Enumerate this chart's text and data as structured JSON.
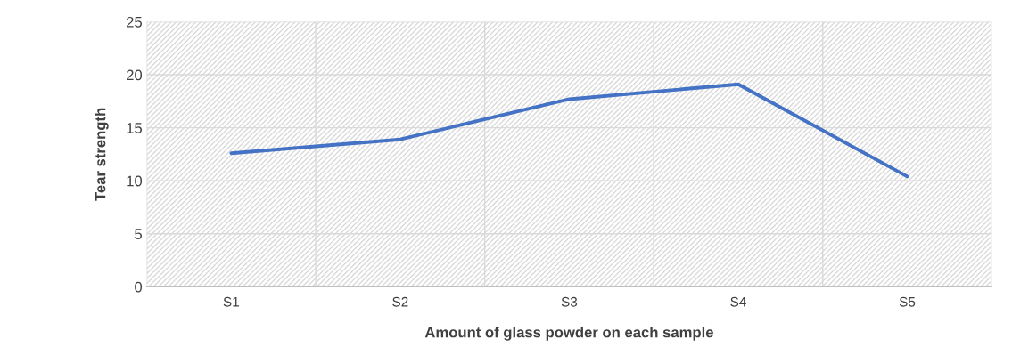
{
  "chart_data": {
    "type": "line",
    "xlabel": "Amount of glass powder on each sample",
    "ylabel": "Tear strength",
    "categories": [
      "S1",
      "S2",
      "S3",
      "S4",
      "S5"
    ],
    "series": [
      {
        "color": "#4472c4",
        "values": [
          12.6,
          13.9,
          17.7,
          19.1,
          10.4
        ]
      }
    ],
    "ylim": [
      0,
      25
    ],
    "yticks": [
      0,
      5,
      10,
      15,
      20,
      25
    ],
    "grid": true,
    "marker": "none",
    "line_style": "solid"
  }
}
